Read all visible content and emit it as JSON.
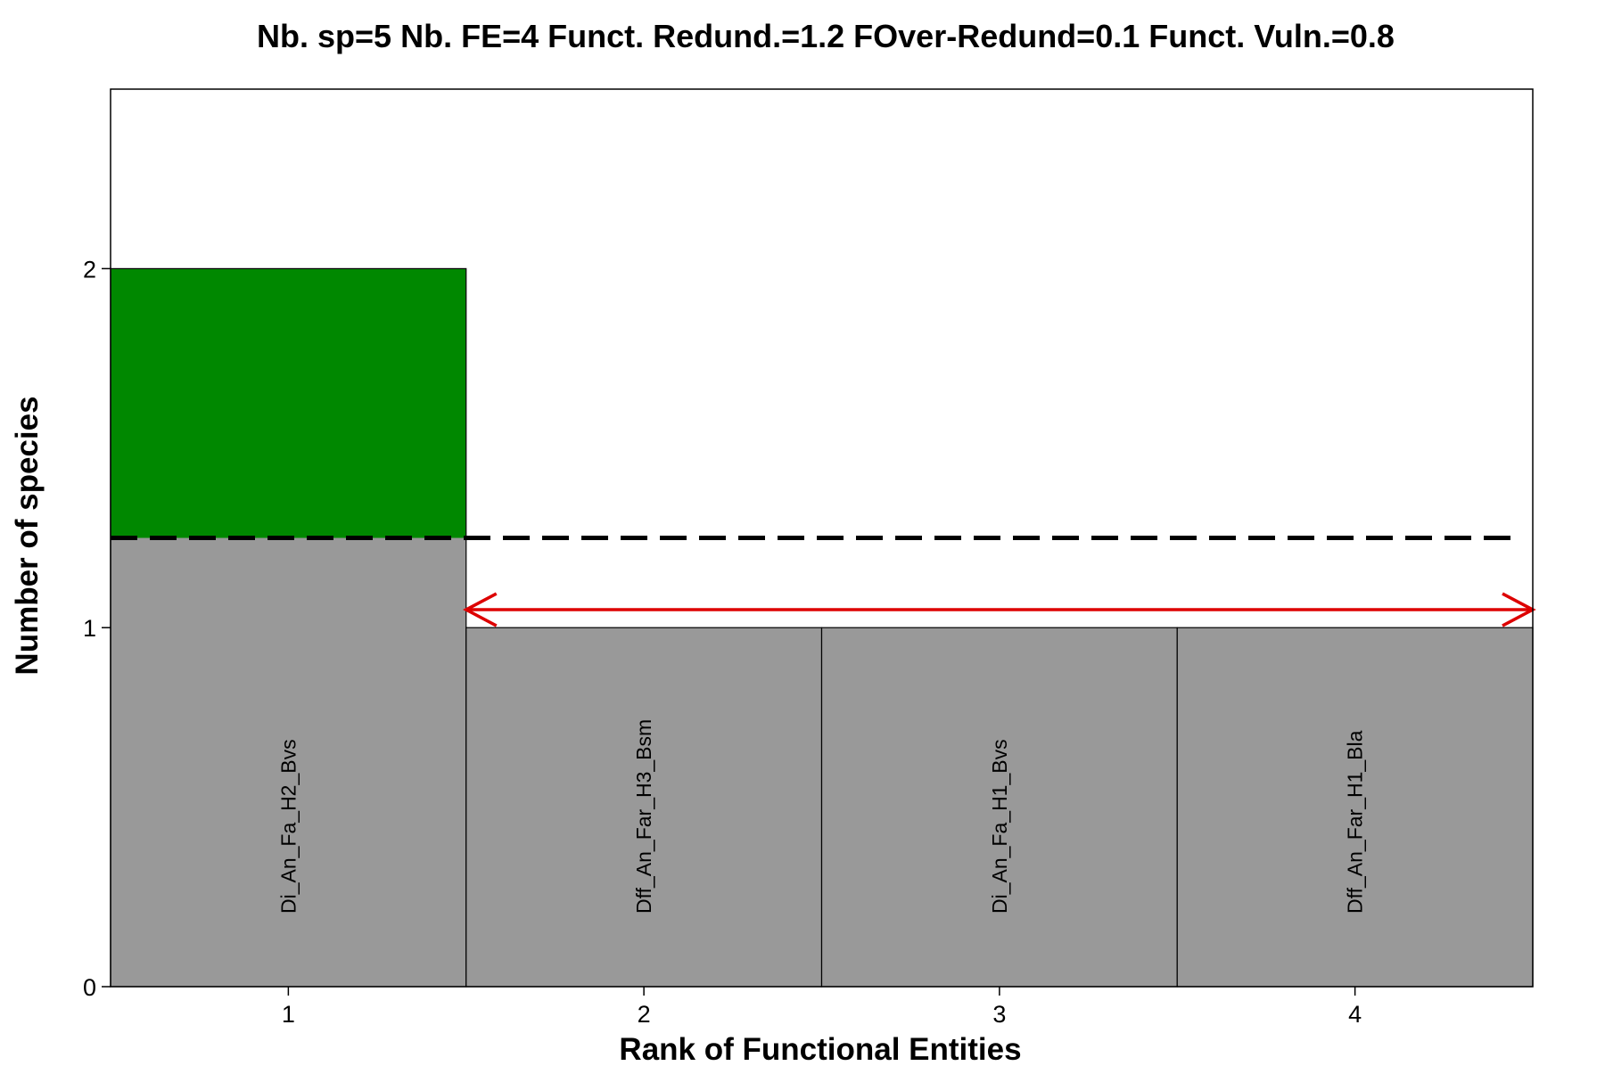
{
  "chart_data": {
    "type": "bar",
    "title": "Nb. sp=5  Nb. FE=4  Funct. Redund.=1.2  FOver-Redund=0.1  Funct. Vuln.=0.8",
    "xlabel": "Rank of Functional Entities",
    "ylabel": "Number of species",
    "categories": [
      "1",
      "2",
      "3",
      "4"
    ],
    "values": [
      2,
      1,
      1,
      1
    ],
    "bar_labels": [
      "Di_An_Fa_H2_Bvs",
      "Dff_An_Far_H3_Bsm",
      "Di_An_Fa_H1_Bvs",
      "Dff_An_Far_H1_Bla"
    ],
    "y_ticks": [
      "0",
      "1",
      "2"
    ],
    "ylim": [
      0,
      2.5
    ],
    "xlim": [
      0.5,
      4.5
    ],
    "mean_line_value": 1.25,
    "vulnerability_arrow": {
      "y": 1.05,
      "from_x": 1.5,
      "to_x": 4.5
    },
    "colors": {
      "bar": "#999999",
      "over_redundancy": "#008800",
      "mean_line": "#000000",
      "arrow": "#DD0000",
      "bar_border": "#000000"
    },
    "grid": false
  }
}
